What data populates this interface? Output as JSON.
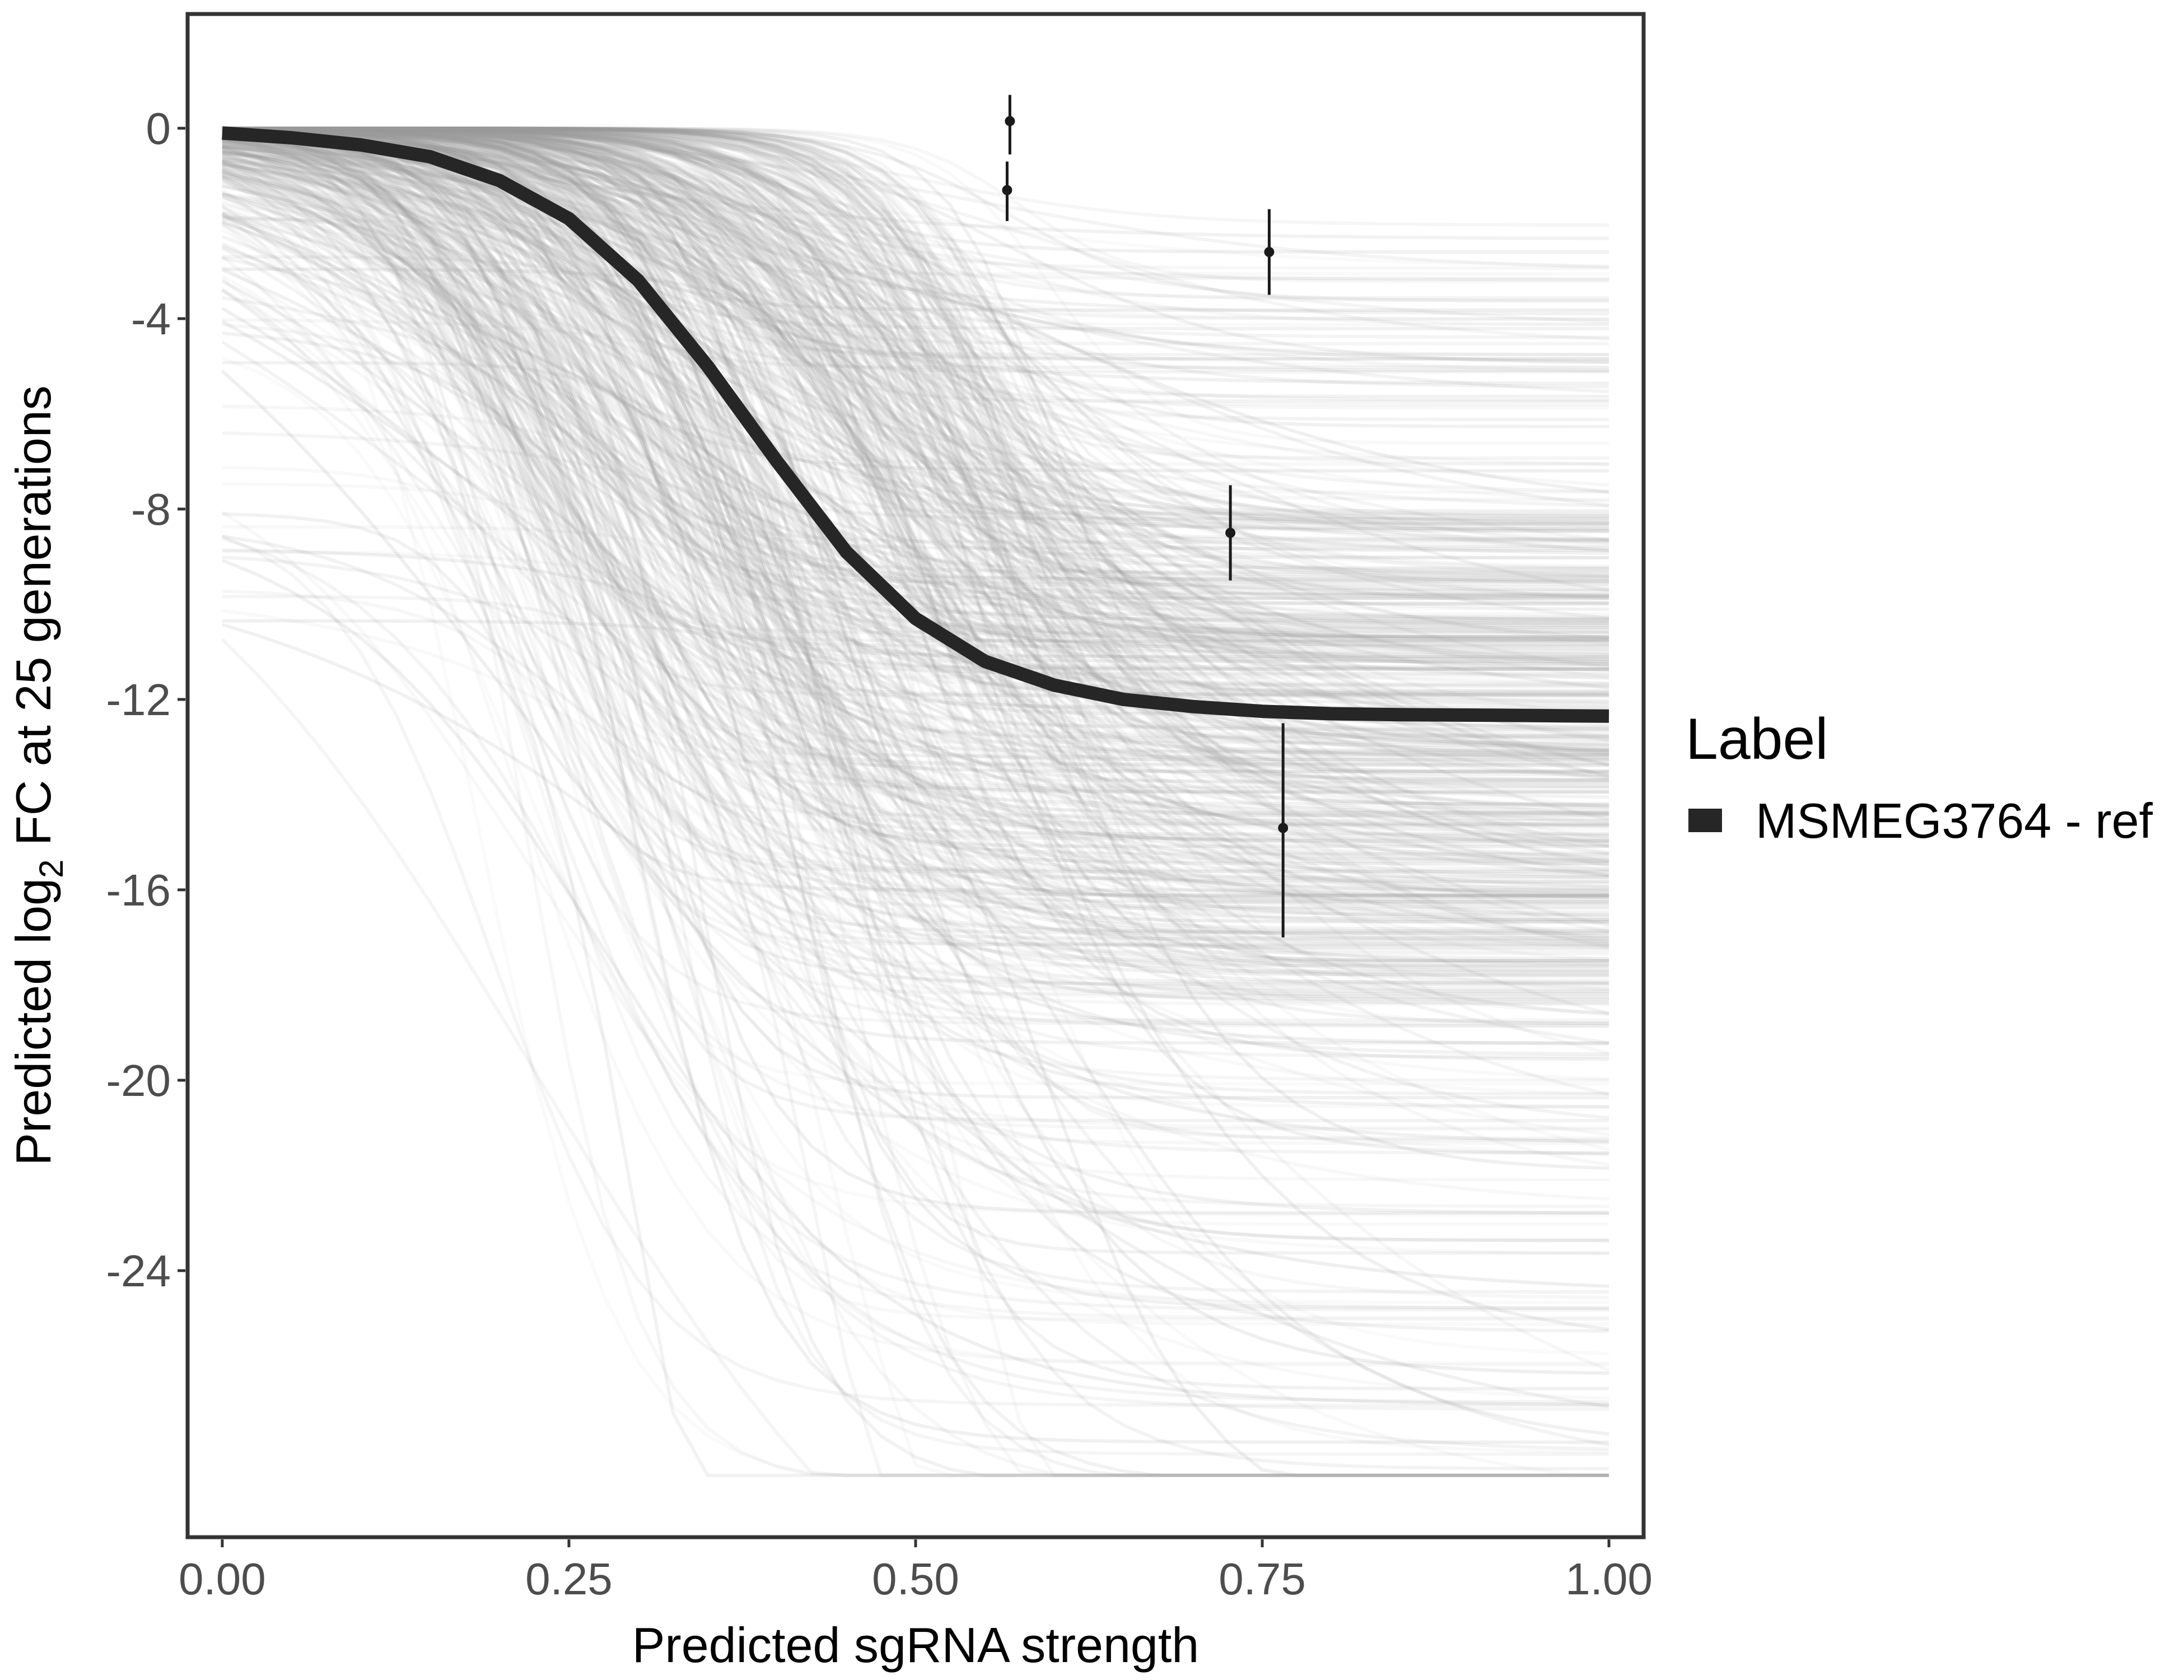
{
  "chart_data": {
    "type": "line",
    "title": "",
    "xlabel": "Predicted sgRNA strength",
    "ylabel_prefix": "Predicted  log",
    "ylabel_subscript": "2",
    "ylabel_suffix": " FC at 25 generations",
    "xlim": [
      -0.025,
      1.025
    ],
    "ylim": [
      -29.6,
      2.4
    ],
    "x_ticks": [
      0.0,
      0.25,
      0.5,
      0.75,
      1.0
    ],
    "x_tick_labels": [
      "0.00",
      "0.25",
      "0.50",
      "0.75",
      "1.00"
    ],
    "y_ticks": [
      0,
      -4,
      -8,
      -12,
      -16,
      -20,
      -24
    ],
    "y_tick_labels": [
      "0",
      "-4",
      "-8",
      "-12",
      "-16",
      "-20",
      "-24"
    ],
    "grid": false,
    "legend": {
      "title": "Label",
      "position": "right",
      "entries": [
        {
          "name": "MSMEG3764 - ref",
          "color": "#262626"
        }
      ]
    },
    "series": [
      {
        "name": "MSMEG3764 - ref",
        "role": "fitted curve",
        "color": "#262626",
        "x": [
          0.0,
          0.05,
          0.1,
          0.15,
          0.2,
          0.25,
          0.3,
          0.35,
          0.4,
          0.45,
          0.5,
          0.55,
          0.6,
          0.65,
          0.7,
          0.75,
          0.8,
          0.85,
          0.9,
          0.95,
          1.0
        ],
        "y": [
          -0.1,
          -0.2,
          -0.35,
          -0.6,
          -1.1,
          -1.9,
          -3.2,
          -5.0,
          -7.0,
          -8.9,
          -10.3,
          -11.2,
          -11.7,
          -12.0,
          -12.15,
          -12.25,
          -12.3,
          -12.32,
          -12.33,
          -12.34,
          -12.35
        ]
      }
    ],
    "posterior_draws": {
      "description": "posterior sample curves (light grey)",
      "color": "#9e9e9e",
      "count": 600
    },
    "points": [
      {
        "x": 0.568,
        "y": 0.15,
        "ymin": -0.55,
        "ymax": 0.7
      },
      {
        "x": 0.566,
        "y": -1.3,
        "ymin": -1.95,
        "ymax": -0.7
      },
      {
        "x": 0.755,
        "y": -2.6,
        "ymin": -3.5,
        "ymax": -1.7
      },
      {
        "x": 0.727,
        "y": -8.5,
        "ymin": -9.5,
        "ymax": -7.5
      },
      {
        "x": 0.765,
        "y": -14.7,
        "ymin": -17.0,
        "ymax": -12.5
      }
    ]
  }
}
